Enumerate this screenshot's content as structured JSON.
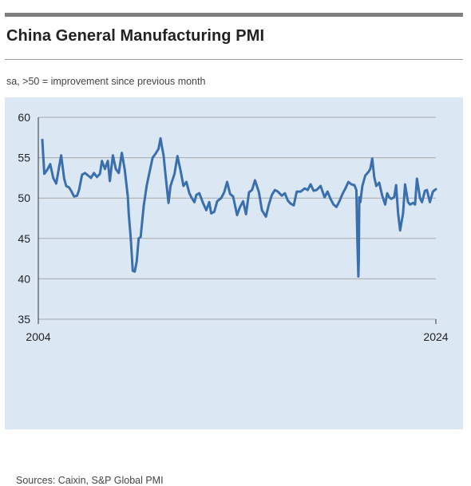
{
  "title": "China General Manufacturing PMI",
  "subtitle": "sa, >50 = improvement since previous month",
  "source": "Sources: Caixin, S&P Global PMI",
  "colors": {
    "line": "#3a6fae",
    "panel": "#dce7f4",
    "grid": "#a9a9a9",
    "text": "#222222"
  },
  "chart_data": {
    "type": "line",
    "title": "China General Manufacturing PMI",
    "xlabel": "",
    "ylabel": "",
    "xlim": [
      2004.0,
      2024.0
    ],
    "ylim": [
      35,
      60
    ],
    "yticks": [
      60,
      55,
      50,
      45,
      40,
      35
    ],
    "xticks": [
      {
        "value": 2004.0,
        "label": "2004"
      },
      {
        "value": 2024.0,
        "label": "2024"
      }
    ],
    "grid": true,
    "legend": "none",
    "series": [
      {
        "x": [
          2004.2,
          2004.3,
          2004.45,
          2004.6,
          2004.75,
          2004.9,
          2005.0,
          2005.15,
          2005.3,
          2005.4,
          2005.55,
          2005.65,
          2005.8,
          2005.95,
          2006.05,
          2006.2,
          2006.35,
          2006.5,
          2006.65,
          2006.8,
          2006.95,
          2007.1,
          2007.2,
          2007.35,
          2007.5,
          2007.6,
          2007.75,
          2007.9,
          2008.05,
          2008.2,
          2008.35,
          2008.5,
          2008.55,
          2008.65,
          2008.75,
          2008.85,
          2008.9,
          2008.95,
          2009.05,
          2009.15,
          2009.3,
          2009.45,
          2009.55,
          2009.75,
          2009.9,
          2010.05,
          2010.15,
          2010.2,
          2010.3,
          2010.4,
          2010.55,
          2010.65,
          2010.85,
          2011.0,
          2011.15,
          2011.3,
          2011.45,
          2011.6,
          2011.7,
          2011.85,
          2011.95,
          2012.1,
          2012.3,
          2012.45,
          2012.6,
          2012.7,
          2012.85,
          2013.0,
          2013.2,
          2013.35,
          2013.5,
          2013.65,
          2013.8,
          2014.0,
          2014.15,
          2014.3,
          2014.45,
          2014.6,
          2014.75,
          2014.9,
          2015.1,
          2015.25,
          2015.45,
          2015.6,
          2015.75,
          2015.9,
          2016.05,
          2016.25,
          2016.4,
          2016.55,
          2016.7,
          2016.85,
          2017.0,
          2017.2,
          2017.4,
          2017.55,
          2017.7,
          2017.85,
          2018.0,
          2018.2,
          2018.4,
          2018.55,
          2018.7,
          2018.85,
          2019.0,
          2019.15,
          2019.3,
          2019.45,
          2019.6,
          2019.75,
          2019.9,
          2020.0,
          2020.05,
          2020.1,
          2020.12,
          2020.15,
          2020.2,
          2020.3,
          2020.45,
          2020.6,
          2020.7,
          2020.8,
          2020.9,
          2021.0,
          2021.15,
          2021.3,
          2021.45,
          2021.55,
          2021.65,
          2021.75,
          2021.9,
          2022.0,
          2022.1,
          2022.2,
          2022.35,
          2022.45,
          2022.6,
          2022.7,
          2022.85,
          2022.95,
          2023.05,
          2023.2,
          2023.3,
          2023.45,
          2023.55,
          2023.7,
          2023.85,
          2023.95,
          2024.0
        ],
        "values": [
          57.2,
          53.0,
          53.5,
          54.2,
          52.5,
          51.8,
          53.2,
          55.3,
          52.4,
          51.5,
          51.3,
          50.9,
          50.2,
          50.3,
          51.0,
          52.9,
          53.1,
          52.8,
          52.5,
          53.1,
          52.6,
          53.0,
          54.6,
          53.6,
          54.6,
          52.1,
          55.3,
          53.6,
          53.1,
          55.6,
          53.5,
          50.2,
          48.0,
          45.0,
          41.0,
          40.9,
          41.5,
          42.2,
          45.0,
          45.2,
          49.0,
          51.5,
          52.7,
          55.0,
          55.5,
          56.1,
          57.4,
          56.6,
          55.3,
          52.8,
          49.4,
          51.5,
          53.0,
          55.2,
          53.5,
          51.5,
          52.0,
          50.6,
          50.1,
          49.5,
          50.4,
          50.6,
          49.3,
          48.5,
          49.5,
          48.1,
          48.3,
          49.6,
          50.0,
          50.7,
          52.0,
          50.5,
          50.2,
          47.9,
          48.9,
          49.6,
          48.0,
          50.7,
          51.0,
          52.2,
          50.7,
          48.5,
          47.7,
          49.2,
          50.4,
          51.0,
          50.8,
          50.3,
          50.6,
          49.7,
          49.3,
          49.1,
          50.8,
          50.8,
          51.2,
          51.0,
          51.7,
          50.9,
          51.0,
          51.5,
          50.1,
          50.8,
          49.9,
          49.2,
          48.9,
          49.6,
          50.5,
          51.2,
          52.0,
          51.7,
          51.6,
          51.0,
          45.0,
          40.3,
          42.0,
          50.1,
          49.5,
          51.5,
          52.8,
          53.2,
          53.6,
          54.9,
          52.6,
          51.5,
          51.9,
          50.3,
          49.2,
          50.6,
          50.1,
          49.9,
          50.1,
          51.6,
          48.1,
          46.0,
          48.1,
          51.7,
          49.5,
          49.2,
          49.4,
          49.2,
          52.4,
          50.0,
          49.5,
          50.9,
          51.0,
          49.5,
          50.8,
          51.0,
          51.1
        ]
      }
    ]
  }
}
